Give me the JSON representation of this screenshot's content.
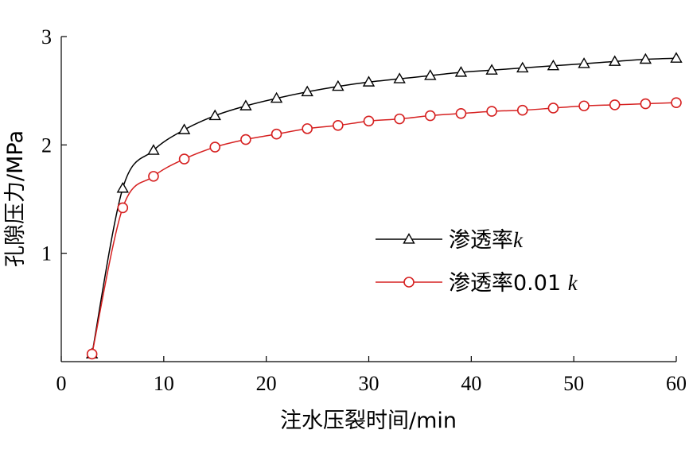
{
  "chart_data": {
    "type": "line",
    "xlabel": "注水压裂时间/min",
    "ylabel": "孔隙压力/MPa",
    "xlim": [
      0,
      60
    ],
    "ylim": [
      0,
      3
    ],
    "x_ticks": [
      0,
      10,
      20,
      30,
      40,
      50,
      60
    ],
    "y_ticks": [
      1,
      2,
      3
    ],
    "grid": false,
    "legend_position": "center-right",
    "x": [
      3,
      6,
      9,
      12,
      15,
      18,
      21,
      24,
      27,
      30,
      33,
      36,
      39,
      42,
      45,
      48,
      51,
      54,
      57,
      60
    ],
    "series": [
      {
        "name": "渗透率k",
        "name_prefix": "渗透率",
        "name_var": "k",
        "color": "#000000",
        "marker": "triangle",
        "values": [
          0.07,
          1.6,
          1.95,
          2.14,
          2.27,
          2.36,
          2.43,
          2.49,
          2.54,
          2.58,
          2.61,
          2.64,
          2.67,
          2.69,
          2.71,
          2.73,
          2.75,
          2.77,
          2.79,
          2.8
        ]
      },
      {
        "name": "渗透率0.01 k",
        "name_prefix": "渗透率0.01 ",
        "name_var": "k",
        "color": "#d62020",
        "marker": "circle",
        "values": [
          0.07,
          1.42,
          1.71,
          1.87,
          1.98,
          2.05,
          2.1,
          2.15,
          2.18,
          2.22,
          2.24,
          2.27,
          2.29,
          2.31,
          2.32,
          2.34,
          2.36,
          2.37,
          2.38,
          2.39
        ]
      }
    ]
  }
}
